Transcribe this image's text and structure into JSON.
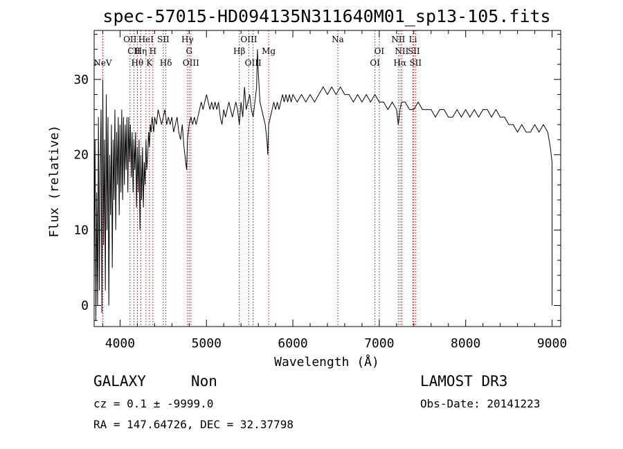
{
  "chart_data": {
    "type": "line",
    "title": "spec-57015-HD094135N311640M01_sp13-105.fits",
    "xlabel": "Wavelength (Å)",
    "ylabel": "Flux (relative)",
    "xlim": [
      3700,
      9100
    ],
    "ylim": [
      -2.8,
      36.5
    ],
    "x_ticks": [
      4000,
      5000,
      6000,
      7000,
      8000,
      9000
    ],
    "y_ticks": [
      0,
      10,
      20,
      30
    ],
    "grid": false,
    "series": [
      {
        "points": [
          [
            3700,
            3
          ],
          [
            3710,
            22
          ],
          [
            3720,
            -2
          ],
          [
            3730,
            15
          ],
          [
            3740,
            0
          ],
          [
            3750,
            25
          ],
          [
            3760,
            2
          ],
          [
            3770,
            18
          ],
          [
            3780,
            26
          ],
          [
            3790,
            -1
          ],
          [
            3800,
            30
          ],
          [
            3810,
            8
          ],
          [
            3820,
            22
          ],
          [
            3830,
            2
          ],
          [
            3840,
            28
          ],
          [
            3850,
            10
          ],
          [
            3860,
            25
          ],
          [
            3870,
            0
          ],
          [
            3880,
            20
          ],
          [
            3890,
            12
          ],
          [
            3900,
            24
          ],
          [
            3910,
            5
          ],
          [
            3920,
            22
          ],
          [
            3930,
            14
          ],
          [
            3940,
            26
          ],
          [
            3950,
            10
          ],
          [
            3960,
            23
          ],
          [
            3970,
            16
          ],
          [
            3980,
            25
          ],
          [
            3990,
            12
          ],
          [
            4000,
            24
          ],
          [
            4010,
            15
          ],
          [
            4020,
            26
          ],
          [
            4030,
            14
          ],
          [
            4040,
            25
          ],
          [
            4050,
            16
          ],
          [
            4060,
            24
          ],
          [
            4070,
            18
          ],
          [
            4080,
            25
          ],
          [
            4090,
            15
          ],
          [
            4100,
            25
          ],
          [
            4110,
            19
          ],
          [
            4120,
            24
          ],
          [
            4130,
            17
          ],
          [
            4140,
            23
          ],
          [
            4150,
            15
          ],
          [
            4160,
            22
          ],
          [
            4170,
            18
          ],
          [
            4180,
            23
          ],
          [
            4190,
            13
          ],
          [
            4200,
            21
          ],
          [
            4210,
            15
          ],
          [
            4220,
            22
          ],
          [
            4230,
            10
          ],
          [
            4240,
            20
          ],
          [
            4250,
            14
          ],
          [
            4260,
            21
          ],
          [
            4270,
            13
          ],
          [
            4280,
            19
          ],
          [
            4290,
            16
          ],
          [
            4300,
            22
          ],
          [
            4310,
            18
          ],
          [
            4320,
            20
          ],
          [
            4330,
            23
          ],
          [
            4340,
            21
          ],
          [
            4350,
            24
          ],
          [
            4360,
            23
          ],
          [
            4370,
            25
          ],
          [
            4380,
            24
          ],
          [
            4390,
            23
          ],
          [
            4400,
            25
          ],
          [
            4420,
            24
          ],
          [
            4440,
            26
          ],
          [
            4460,
            25
          ],
          [
            4480,
            24
          ],
          [
            4500,
            25
          ],
          [
            4520,
            26
          ],
          [
            4540,
            24
          ],
          [
            4560,
            25
          ],
          [
            4580,
            24
          ],
          [
            4600,
            25
          ],
          [
            4620,
            23
          ],
          [
            4640,
            24
          ],
          [
            4660,
            25
          ],
          [
            4680,
            23
          ],
          [
            4700,
            22
          ],
          [
            4720,
            24
          ],
          [
            4740,
            21
          ],
          [
            4760,
            19
          ],
          [
            4770,
            18
          ],
          [
            4780,
            22
          ],
          [
            4800,
            24
          ],
          [
            4820,
            25
          ],
          [
            4840,
            24
          ],
          [
            4860,
            25
          ],
          [
            4880,
            24
          ],
          [
            4900,
            25
          ],
          [
            4920,
            26
          ],
          [
            4940,
            27
          ],
          [
            4960,
            26
          ],
          [
            4980,
            27
          ],
          [
            5000,
            28
          ],
          [
            5020,
            27
          ],
          [
            5040,
            26
          ],
          [
            5060,
            27
          ],
          [
            5080,
            26
          ],
          [
            5100,
            27
          ],
          [
            5120,
            26
          ],
          [
            5140,
            27
          ],
          [
            5160,
            25
          ],
          [
            5180,
            24
          ],
          [
            5200,
            26
          ],
          [
            5220,
            25
          ],
          [
            5240,
            26
          ],
          [
            5260,
            27
          ],
          [
            5280,
            26
          ],
          [
            5300,
            25
          ],
          [
            5320,
            26
          ],
          [
            5340,
            27
          ],
          [
            5360,
            26
          ],
          [
            5380,
            24
          ],
          [
            5400,
            27
          ],
          [
            5420,
            25
          ],
          [
            5440,
            29
          ],
          [
            5460,
            26
          ],
          [
            5480,
            27
          ],
          [
            5500,
            28
          ],
          [
            5520,
            26
          ],
          [
            5540,
            25
          ],
          [
            5560,
            27
          ],
          [
            5580,
            29
          ],
          [
            5590,
            34
          ],
          [
            5600,
            31
          ],
          [
            5620,
            27
          ],
          [
            5640,
            26
          ],
          [
            5660,
            25
          ],
          [
            5680,
            24
          ],
          [
            5700,
            22
          ],
          [
            5710,
            20
          ],
          [
            5720,
            24
          ],
          [
            5740,
            25
          ],
          [
            5760,
            26
          ],
          [
            5780,
            27
          ],
          [
            5800,
            26
          ],
          [
            5820,
            27
          ],
          [
            5840,
            26
          ],
          [
            5860,
            27
          ],
          [
            5880,
            28
          ],
          [
            5900,
            27
          ],
          [
            5920,
            28
          ],
          [
            5940,
            27
          ],
          [
            5960,
            28
          ],
          [
            5980,
            27
          ],
          [
            6000,
            28
          ],
          [
            6050,
            27
          ],
          [
            6100,
            28
          ],
          [
            6150,
            27
          ],
          [
            6200,
            28
          ],
          [
            6250,
            27
          ],
          [
            6300,
            28
          ],
          [
            6350,
            29
          ],
          [
            6400,
            28
          ],
          [
            6450,
            29
          ],
          [
            6500,
            28
          ],
          [
            6550,
            29
          ],
          [
            6600,
            28
          ],
          [
            6650,
            28
          ],
          [
            6700,
            27
          ],
          [
            6750,
            28
          ],
          [
            6800,
            27
          ],
          [
            6850,
            28
          ],
          [
            6900,
            27
          ],
          [
            6950,
            28
          ],
          [
            7000,
            27
          ],
          [
            7050,
            27
          ],
          [
            7100,
            26
          ],
          [
            7150,
            27
          ],
          [
            7200,
            26
          ],
          [
            7220,
            24
          ],
          [
            7240,
            26
          ],
          [
            7260,
            27
          ],
          [
            7300,
            27
          ],
          [
            7350,
            26
          ],
          [
            7400,
            26
          ],
          [
            7450,
            27
          ],
          [
            7500,
            26
          ],
          [
            7550,
            26
          ],
          [
            7600,
            26
          ],
          [
            7650,
            25
          ],
          [
            7700,
            26
          ],
          [
            7750,
            26
          ],
          [
            7800,
            25
          ],
          [
            7850,
            25
          ],
          [
            7900,
            26
          ],
          [
            7950,
            25
          ],
          [
            8000,
            26
          ],
          [
            8050,
            25
          ],
          [
            8100,
            26
          ],
          [
            8150,
            25
          ],
          [
            8200,
            26
          ],
          [
            8250,
            26
          ],
          [
            8300,
            25
          ],
          [
            8350,
            26
          ],
          [
            8400,
            25
          ],
          [
            8450,
            25
          ],
          [
            8500,
            24
          ],
          [
            8550,
            24
          ],
          [
            8600,
            23
          ],
          [
            8650,
            24
          ],
          [
            8700,
            23
          ],
          [
            8750,
            23
          ],
          [
            8800,
            24
          ],
          [
            8850,
            23
          ],
          [
            8900,
            24
          ],
          [
            8950,
            23
          ],
          [
            8980,
            21
          ],
          [
            9000,
            19
          ],
          [
            9001,
            0
          ]
        ]
      }
    ],
    "lines": [
      {
        "x": 3800,
        "label": "NeV",
        "row": 3
      },
      {
        "x": 4115,
        "label": "OII",
        "row": 1
      },
      {
        "x": 4160,
        "label": "CII",
        "row": 2
      },
      {
        "x": 4200,
        "label": "Hθ",
        "row": 3
      },
      {
        "x": 4240,
        "label": "Hη",
        "row": 2
      },
      {
        "x": 4300,
        "label": "HeI",
        "row": 1
      },
      {
        "x": 4340,
        "label": "K",
        "row": 3
      },
      {
        "x": 4380,
        "label": "H",
        "row": 2
      },
      {
        "x": 4500,
        "label": "SII",
        "row": 1
      },
      {
        "x": 4530,
        "label": "Hδ",
        "row": 3
      },
      {
        "x": 4780,
        "label": "Hγ",
        "row": 1
      },
      {
        "x": 4800,
        "label": "G",
        "row": 2
      },
      {
        "x": 4820,
        "label": "OIII",
        "row": 3
      },
      {
        "x": 5380,
        "label": "Hβ",
        "row": 2
      },
      {
        "x": 5490,
        "label": "OIII",
        "row": 1
      },
      {
        "x": 5540,
        "label": "OIII",
        "row": 3
      },
      {
        "x": 5720,
        "label": "Mg",
        "row": 2
      },
      {
        "x": 6520,
        "label": "Na",
        "row": 1
      },
      {
        "x": 6950,
        "label": "OI",
        "row": 3
      },
      {
        "x": 7000,
        "label": "OI",
        "row": 2
      },
      {
        "x": 7220,
        "label": "NII",
        "row": 1
      },
      {
        "x": 7240,
        "label": "Hα",
        "row": 3
      },
      {
        "x": 7260,
        "label": "NII",
        "row": 2
      },
      {
        "x": 7390,
        "label": "Li",
        "row": 1
      },
      {
        "x": 7400,
        "label": "SII",
        "row": 2
      },
      {
        "x": 7420,
        "label": "SII",
        "row": 3
      }
    ]
  },
  "info": {
    "class": "GALAXY",
    "subclass": "Non",
    "survey": "LAMOST DR3",
    "cz": "cz = 0.1 ± -9999.0",
    "obs_date": "Obs-Date: 20141223",
    "radec": "RA = 147.64726, DEC =  32.37798"
  },
  "colors": {
    "axes": "#000000",
    "spectrum": "#000000",
    "line_marker": "#c00000",
    "background": "#ffffff"
  }
}
